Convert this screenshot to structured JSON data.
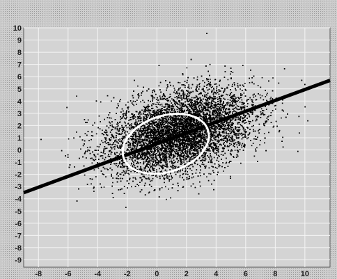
{
  "chart_data": {
    "type": "scatter",
    "title": "",
    "xlabel": "",
    "ylabel": "",
    "xlim": [
      -9,
      11.7
    ],
    "ylim": [
      -9.6,
      10
    ],
    "grid": true,
    "x_ticks": [
      -8,
      -6,
      -4,
      -2,
      0,
      2,
      4,
      6,
      8,
      10
    ],
    "x_tick_labels": [
      "-8",
      "-6",
      "-4",
      "-2",
      "0",
      "2",
      "4",
      "6",
      "8",
      "10"
    ],
    "y_ticks": [
      10,
      9,
      8,
      7,
      6,
      5,
      4,
      3,
      2,
      1,
      0,
      -1,
      -2,
      -3,
      -4,
      -5,
      -6,
      -7,
      -8,
      -9
    ],
    "y_tick_labels": [
      "10",
      "9",
      "8",
      "7",
      "6",
      "5",
      "4",
      "3",
      "2",
      "1",
      "0",
      "-1",
      "-2",
      "-3",
      "-4",
      "-5",
      "-6",
      "-7",
      "-8",
      "-9"
    ],
    "scatter_cloud": {
      "center": [
        1.5,
        1.5
      ],
      "spread_major": 2.6,
      "spread_minor": 1.55,
      "tilt_degrees": 24,
      "color": "#000000"
    },
    "regression_line": {
      "points": [
        [
          -9,
          -3.5
        ],
        [
          11.7,
          5.7
        ]
      ],
      "color": "#000000"
    },
    "ellipse": {
      "center": [
        0.6,
        0.5
      ],
      "semi_axis_x": 3.0,
      "semi_axis_y": 2.3,
      "tilt_degrees": 18,
      "color": "#ffffff"
    }
  }
}
